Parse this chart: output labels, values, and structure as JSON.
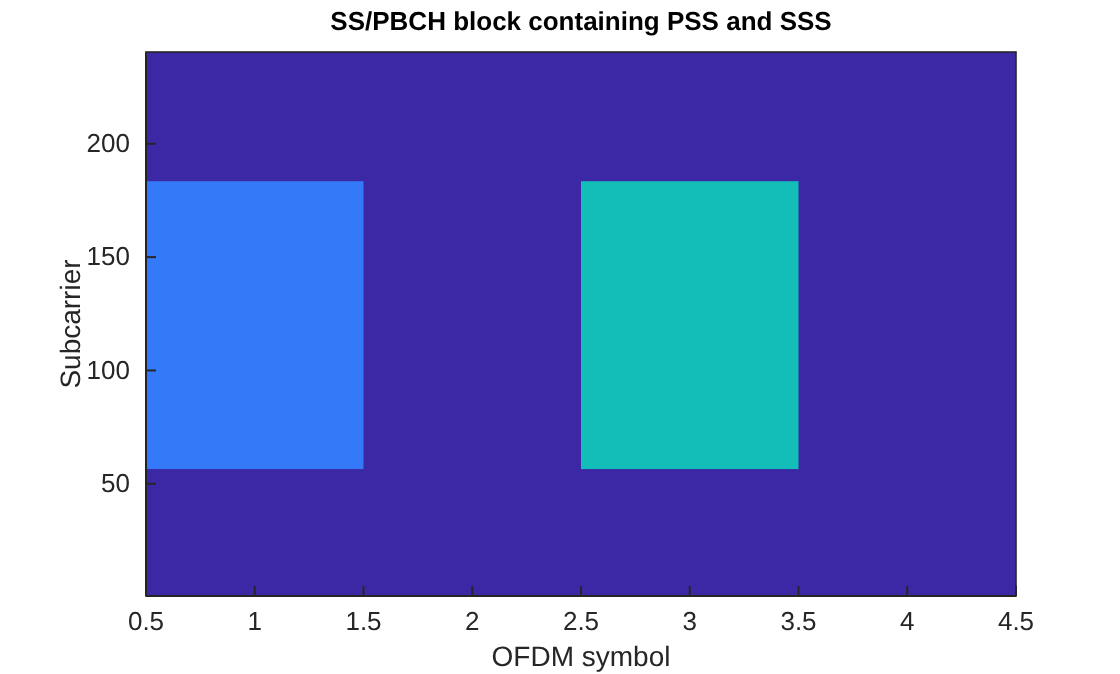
{
  "chart_data": {
    "type": "bar",
    "title": "SS/PBCH block containing PSS and SSS",
    "xlabel": "OFDM symbol",
    "ylabel": "Subcarrier",
    "xlim": [
      0.5,
      4.5
    ],
    "xticks": [
      0.5,
      1,
      1.5,
      2,
      2.5,
      3,
      3.5,
      4,
      4.5
    ],
    "ylim": [
      0.5,
      240.5
    ],
    "yticks": [
      50,
      100,
      150,
      200
    ],
    "bands": [
      {
        "axis": "y",
        "from": 0.5,
        "to": 240.5,
        "color": "#3c28a4"
      }
    ],
    "series": [
      {
        "x": [
          1,
          3
        ],
        "base": [
          56.5,
          56.5
        ],
        "values": [
          127,
          127
        ],
        "colors": [
          "#3479f8",
          "#13bdb8"
        ]
      }
    ]
  }
}
